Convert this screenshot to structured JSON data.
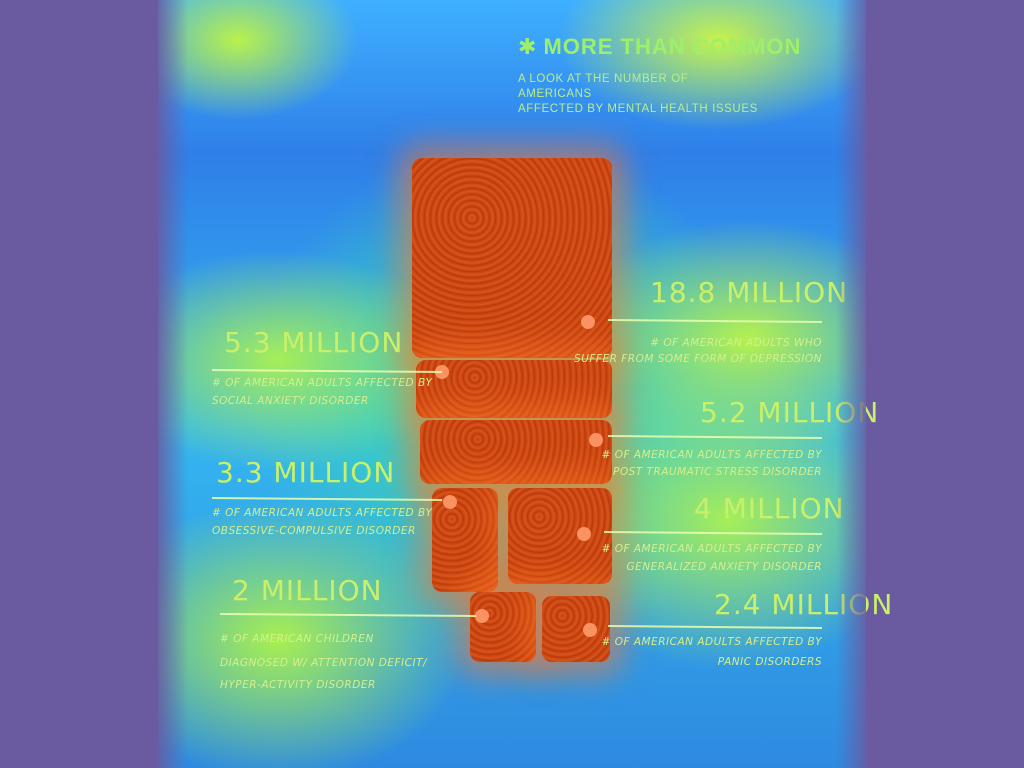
{
  "poster": {
    "title": "MORE THAN COMMON",
    "subtitle_line1": "A LOOK AT THE NUMBER OF AMERICANS",
    "subtitle_line2": "AFFECTED BY MENTAL HEALTH ISSUES",
    "title_icon": "asterisk-icon"
  },
  "colors": {
    "background": "#6a5aa0",
    "heatmap_green": "#a6ef57",
    "heatmap_blue": "#2f7fe8",
    "noodle": "#cc4a12",
    "label": "#c9f06a"
  },
  "chart_data": {
    "type": "bar",
    "categories": [
      "Depression",
      "Social Anxiety Disorder",
      "Post Traumatic Stress Disorder",
      "Obsessive-Compulsive Disorder",
      "Generalized Anxiety Disorder",
      "Attention Deficit/Hyper-activity Disorder",
      "Panic Disorders"
    ],
    "values": [
      18.8,
      5.3,
      5.2,
      3.3,
      4,
      2,
      2.4
    ],
    "labels": [
      {
        "value_text": "18.8 MILLION",
        "desc_line1": "# OF AMERICAN ADULTS WHO",
        "desc_line2": "SUFFER FROM SOME FORM OF DEPRESSION",
        "desc_line3": ""
      },
      {
        "value_text": "5.3 MILLION",
        "desc_line1": "# OF AMERICAN ADULTS AFFECTED BY",
        "desc_line2": "SOCIAL ANXIETY DISORDER",
        "desc_line3": ""
      },
      {
        "value_text": "5.2 MILLION",
        "desc_line1": "# OF AMERICAN ADULTS AFFECTED BY",
        "desc_line2": "POST TRAUMATIC STRESS DISORDER",
        "desc_line3": ""
      },
      {
        "value_text": "3.3 MILLION",
        "desc_line1": "# OF AMERICAN ADULTS AFFECTED BY",
        "desc_line2": "OBSESSIVE-COMPULSIVE DISORDER",
        "desc_line3": ""
      },
      {
        "value_text": "4 MILLION",
        "desc_line1": "# OF AMERICAN ADULTS AFFECTED BY",
        "desc_line2": "GENERALIZED ANXIETY DISORDER",
        "desc_line3": ""
      },
      {
        "value_text": "2 MILLION",
        "desc_line1": "# OF AMERICAN CHILDREN",
        "desc_line2": "DIAGNOSED W/ ATTENTION DEFICIT/",
        "desc_line3": "HYPER-ACTIVITY DISORDER"
      },
      {
        "value_text": "2.4 MILLION",
        "desc_line1": "# OF AMERICAN ADULTS AFFECTED BY",
        "desc_line2": "PANIC DISORDERS",
        "desc_line3": ""
      }
    ],
    "title": "MORE THAN COMMON",
    "subtitle": "A LOOK AT THE NUMBER OF AMERICANS AFFECTED BY MENTAL HEALTH ISSUES",
    "xlabel": "",
    "ylabel": ""
  }
}
